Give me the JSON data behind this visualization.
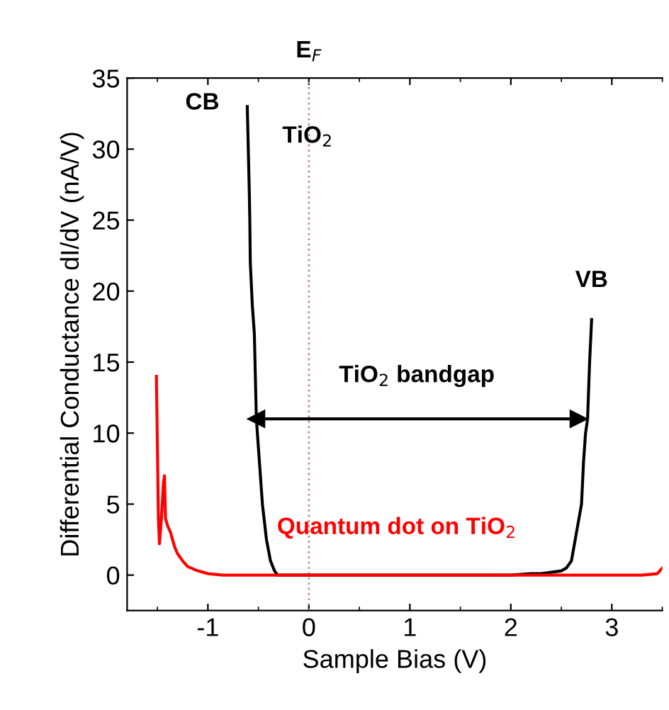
{
  "chart_data": {
    "type": "line",
    "xlabel": "Sample Bias (V)",
    "ylabel": "Differential Conductance dI/dV (nA/V)",
    "xlim": [
      -1.8,
      3.5
    ],
    "ylim": [
      -2.5,
      35
    ],
    "xticks": [
      -1,
      0,
      1,
      2,
      3
    ],
    "yticks": [
      0,
      5,
      10,
      15,
      20,
      25,
      30,
      35
    ],
    "grid": false,
    "series": [
      {
        "name": "TiO$_{2}$",
        "color": "#000000",
        "x": [
          -0.61,
          -0.6,
          -0.59,
          -0.585,
          -0.58,
          -0.56,
          -0.54,
          -0.52,
          -0.49,
          -0.46,
          -0.42,
          -0.38,
          -0.34,
          -0.31,
          -0.2,
          0,
          0.5,
          1,
          1.5,
          2,
          2.2,
          2.3,
          2.4,
          2.5,
          2.55,
          2.6,
          2.65,
          2.7,
          2.72,
          2.74,
          2.76,
          2.78,
          2.8
        ],
        "values": [
          33,
          30,
          27,
          25,
          22,
          19,
          17,
          11,
          8,
          5,
          2.5,
          1,
          0.3,
          0,
          0,
          0,
          0,
          0,
          0,
          0,
          0.1,
          0.1,
          0.2,
          0.3,
          0.5,
          1,
          3,
          5,
          8,
          10,
          11,
          15,
          18
        ]
      },
      {
        "name": "Quantum dot on TiO$_{2}$",
        "color": "#ff0000",
        "x": [
          -1.51,
          -1.5,
          -1.49,
          -1.48,
          -1.46,
          -1.44,
          -1.43,
          -1.42,
          -1.4,
          -1.37,
          -1.33,
          -1.3,
          -1.25,
          -1.2,
          -1.1,
          -1.0,
          -0.85,
          -0.8,
          0,
          1,
          2,
          3,
          3.3,
          3.45,
          3.5
        ],
        "values": [
          14,
          9,
          4,
          2.2,
          4,
          6.5,
          7,
          4,
          3.5,
          3,
          2,
          1.5,
          1,
          0.6,
          0.3,
          0.1,
          0,
          0,
          0,
          0,
          0,
          0,
          0,
          0.1,
          0.5
        ]
      },
      {
        "type": "line",
        "color": "#000000",
        "marker": "triangle",
        "x": [
          -0.52,
          2.67
        ],
        "values": [
          11,
          11
        ]
      }
    ],
    "ref_lines": [
      {
        "axis": "x",
        "value": 0,
        "label": "E$_{F}$",
        "color": "#c09090",
        "line_style": "dotted"
      }
    ],
    "annotations": [
      {
        "text": "CB",
        "x": -0.6,
        "y": 33
      },
      {
        "text": "VB",
        "x": 2.8,
        "y": 18
      },
      {
        "text": "TiO$_{2}$ bandgap",
        "x": 1.07,
        "y": 11
      }
    ]
  }
}
